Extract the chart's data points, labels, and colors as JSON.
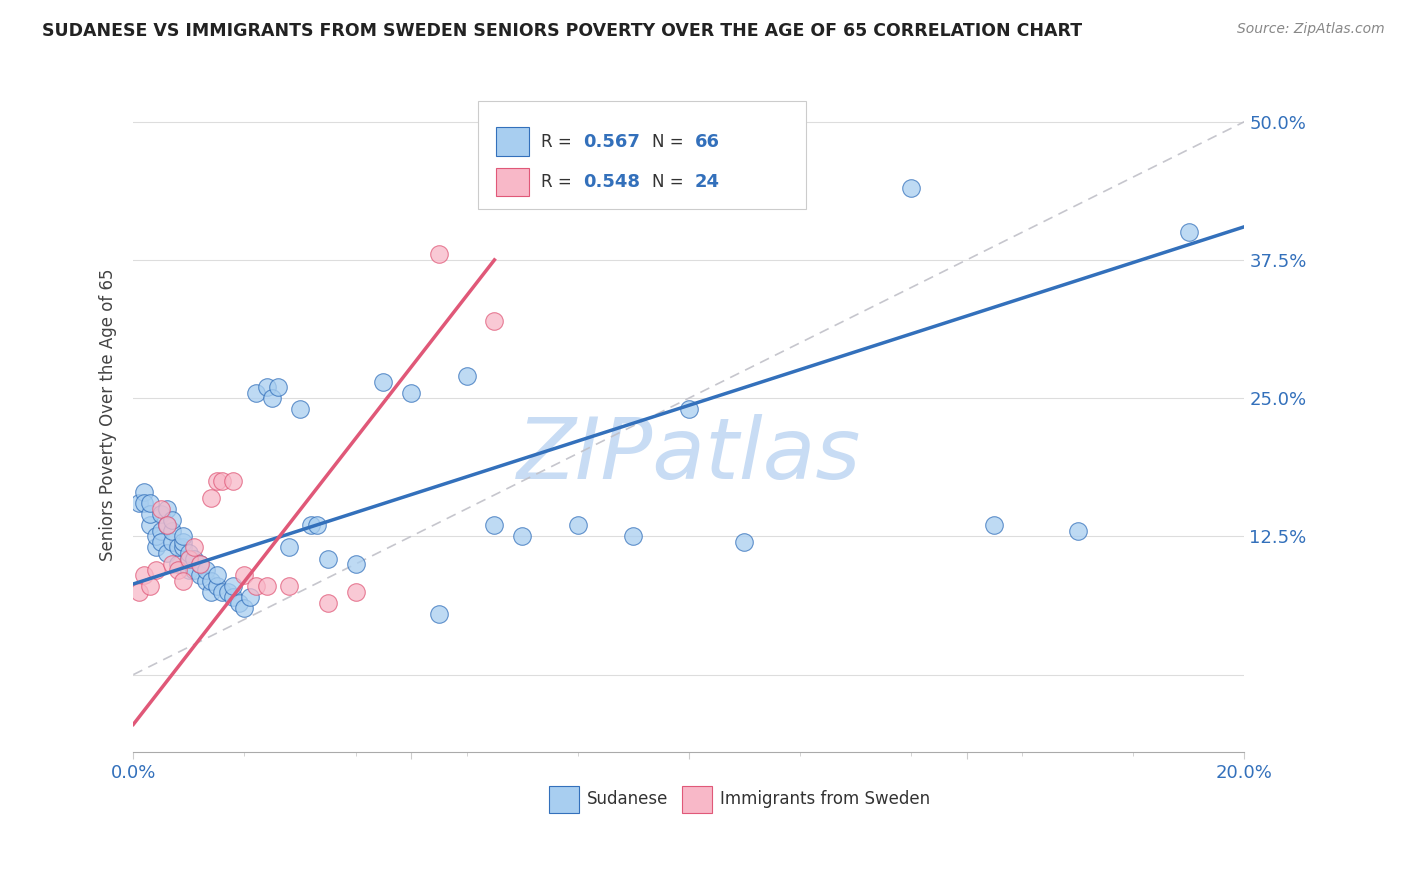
{
  "title": "SUDANESE VS IMMIGRANTS FROM SWEDEN SENIORS POVERTY OVER THE AGE OF 65 CORRELATION CHART",
  "source": "Source: ZipAtlas.com",
  "ylabel": "Seniors Poverty Over the Age of 65",
  "xlim": [
    0.0,
    0.2
  ],
  "ylim": [
    -0.07,
    0.54
  ],
  "yticks": [
    0.0,
    0.125,
    0.25,
    0.375,
    0.5
  ],
  "yticklabels": [
    "",
    "12.5%",
    "25.0%",
    "37.5%",
    "50.0%"
  ],
  "r_sudanese": 0.567,
  "n_sudanese": 66,
  "r_sweden": 0.548,
  "n_sweden": 24,
  "color_sudanese": "#A8CEF0",
  "color_sweden": "#F8B8C8",
  "line_color_sudanese": "#3370BB",
  "line_color_sweden": "#E05878",
  "watermark": "ZIPatlas",
  "watermark_color": "#C8DCF4",
  "sud_line_x0": 0.0,
  "sud_line_y0": 0.082,
  "sud_line_x1": 0.2,
  "sud_line_y1": 0.405,
  "swe_line_x0": 0.0,
  "swe_line_y0": -0.045,
  "swe_line_x1": 0.065,
  "swe_line_y1": 0.375,
  "sudanese_x": [
    0.001,
    0.002,
    0.002,
    0.003,
    0.003,
    0.003,
    0.004,
    0.004,
    0.005,
    0.005,
    0.005,
    0.006,
    0.006,
    0.006,
    0.007,
    0.007,
    0.007,
    0.008,
    0.008,
    0.009,
    0.009,
    0.009,
    0.01,
    0.01,
    0.01,
    0.011,
    0.011,
    0.012,
    0.012,
    0.013,
    0.013,
    0.014,
    0.014,
    0.015,
    0.015,
    0.016,
    0.017,
    0.018,
    0.018,
    0.019,
    0.02,
    0.021,
    0.022,
    0.024,
    0.025,
    0.026,
    0.028,
    0.03,
    0.032,
    0.033,
    0.035,
    0.04,
    0.045,
    0.05,
    0.055,
    0.06,
    0.065,
    0.07,
    0.08,
    0.09,
    0.1,
    0.11,
    0.14,
    0.155,
    0.17,
    0.19
  ],
  "sudanese_y": [
    0.155,
    0.165,
    0.155,
    0.135,
    0.145,
    0.155,
    0.115,
    0.125,
    0.13,
    0.12,
    0.145,
    0.11,
    0.135,
    0.15,
    0.12,
    0.13,
    0.14,
    0.1,
    0.115,
    0.115,
    0.12,
    0.125,
    0.095,
    0.105,
    0.11,
    0.095,
    0.105,
    0.09,
    0.1,
    0.085,
    0.095,
    0.075,
    0.085,
    0.08,
    0.09,
    0.075,
    0.075,
    0.07,
    0.08,
    0.065,
    0.06,
    0.07,
    0.255,
    0.26,
    0.25,
    0.26,
    0.115,
    0.24,
    0.135,
    0.135,
    0.105,
    0.1,
    0.265,
    0.255,
    0.055,
    0.27,
    0.135,
    0.125,
    0.135,
    0.125,
    0.24,
    0.12,
    0.44,
    0.135,
    0.13,
    0.4
  ],
  "sweden_x": [
    0.001,
    0.002,
    0.003,
    0.004,
    0.005,
    0.006,
    0.007,
    0.008,
    0.009,
    0.01,
    0.011,
    0.012,
    0.014,
    0.015,
    0.016,
    0.018,
    0.02,
    0.022,
    0.024,
    0.028,
    0.035,
    0.04,
    0.055,
    0.065
  ],
  "sweden_y": [
    0.075,
    0.09,
    0.08,
    0.095,
    0.15,
    0.135,
    0.1,
    0.095,
    0.085,
    0.105,
    0.115,
    0.1,
    0.16,
    0.175,
    0.175,
    0.175,
    0.09,
    0.08,
    0.08,
    0.08,
    0.065,
    0.075,
    0.38,
    0.32
  ]
}
